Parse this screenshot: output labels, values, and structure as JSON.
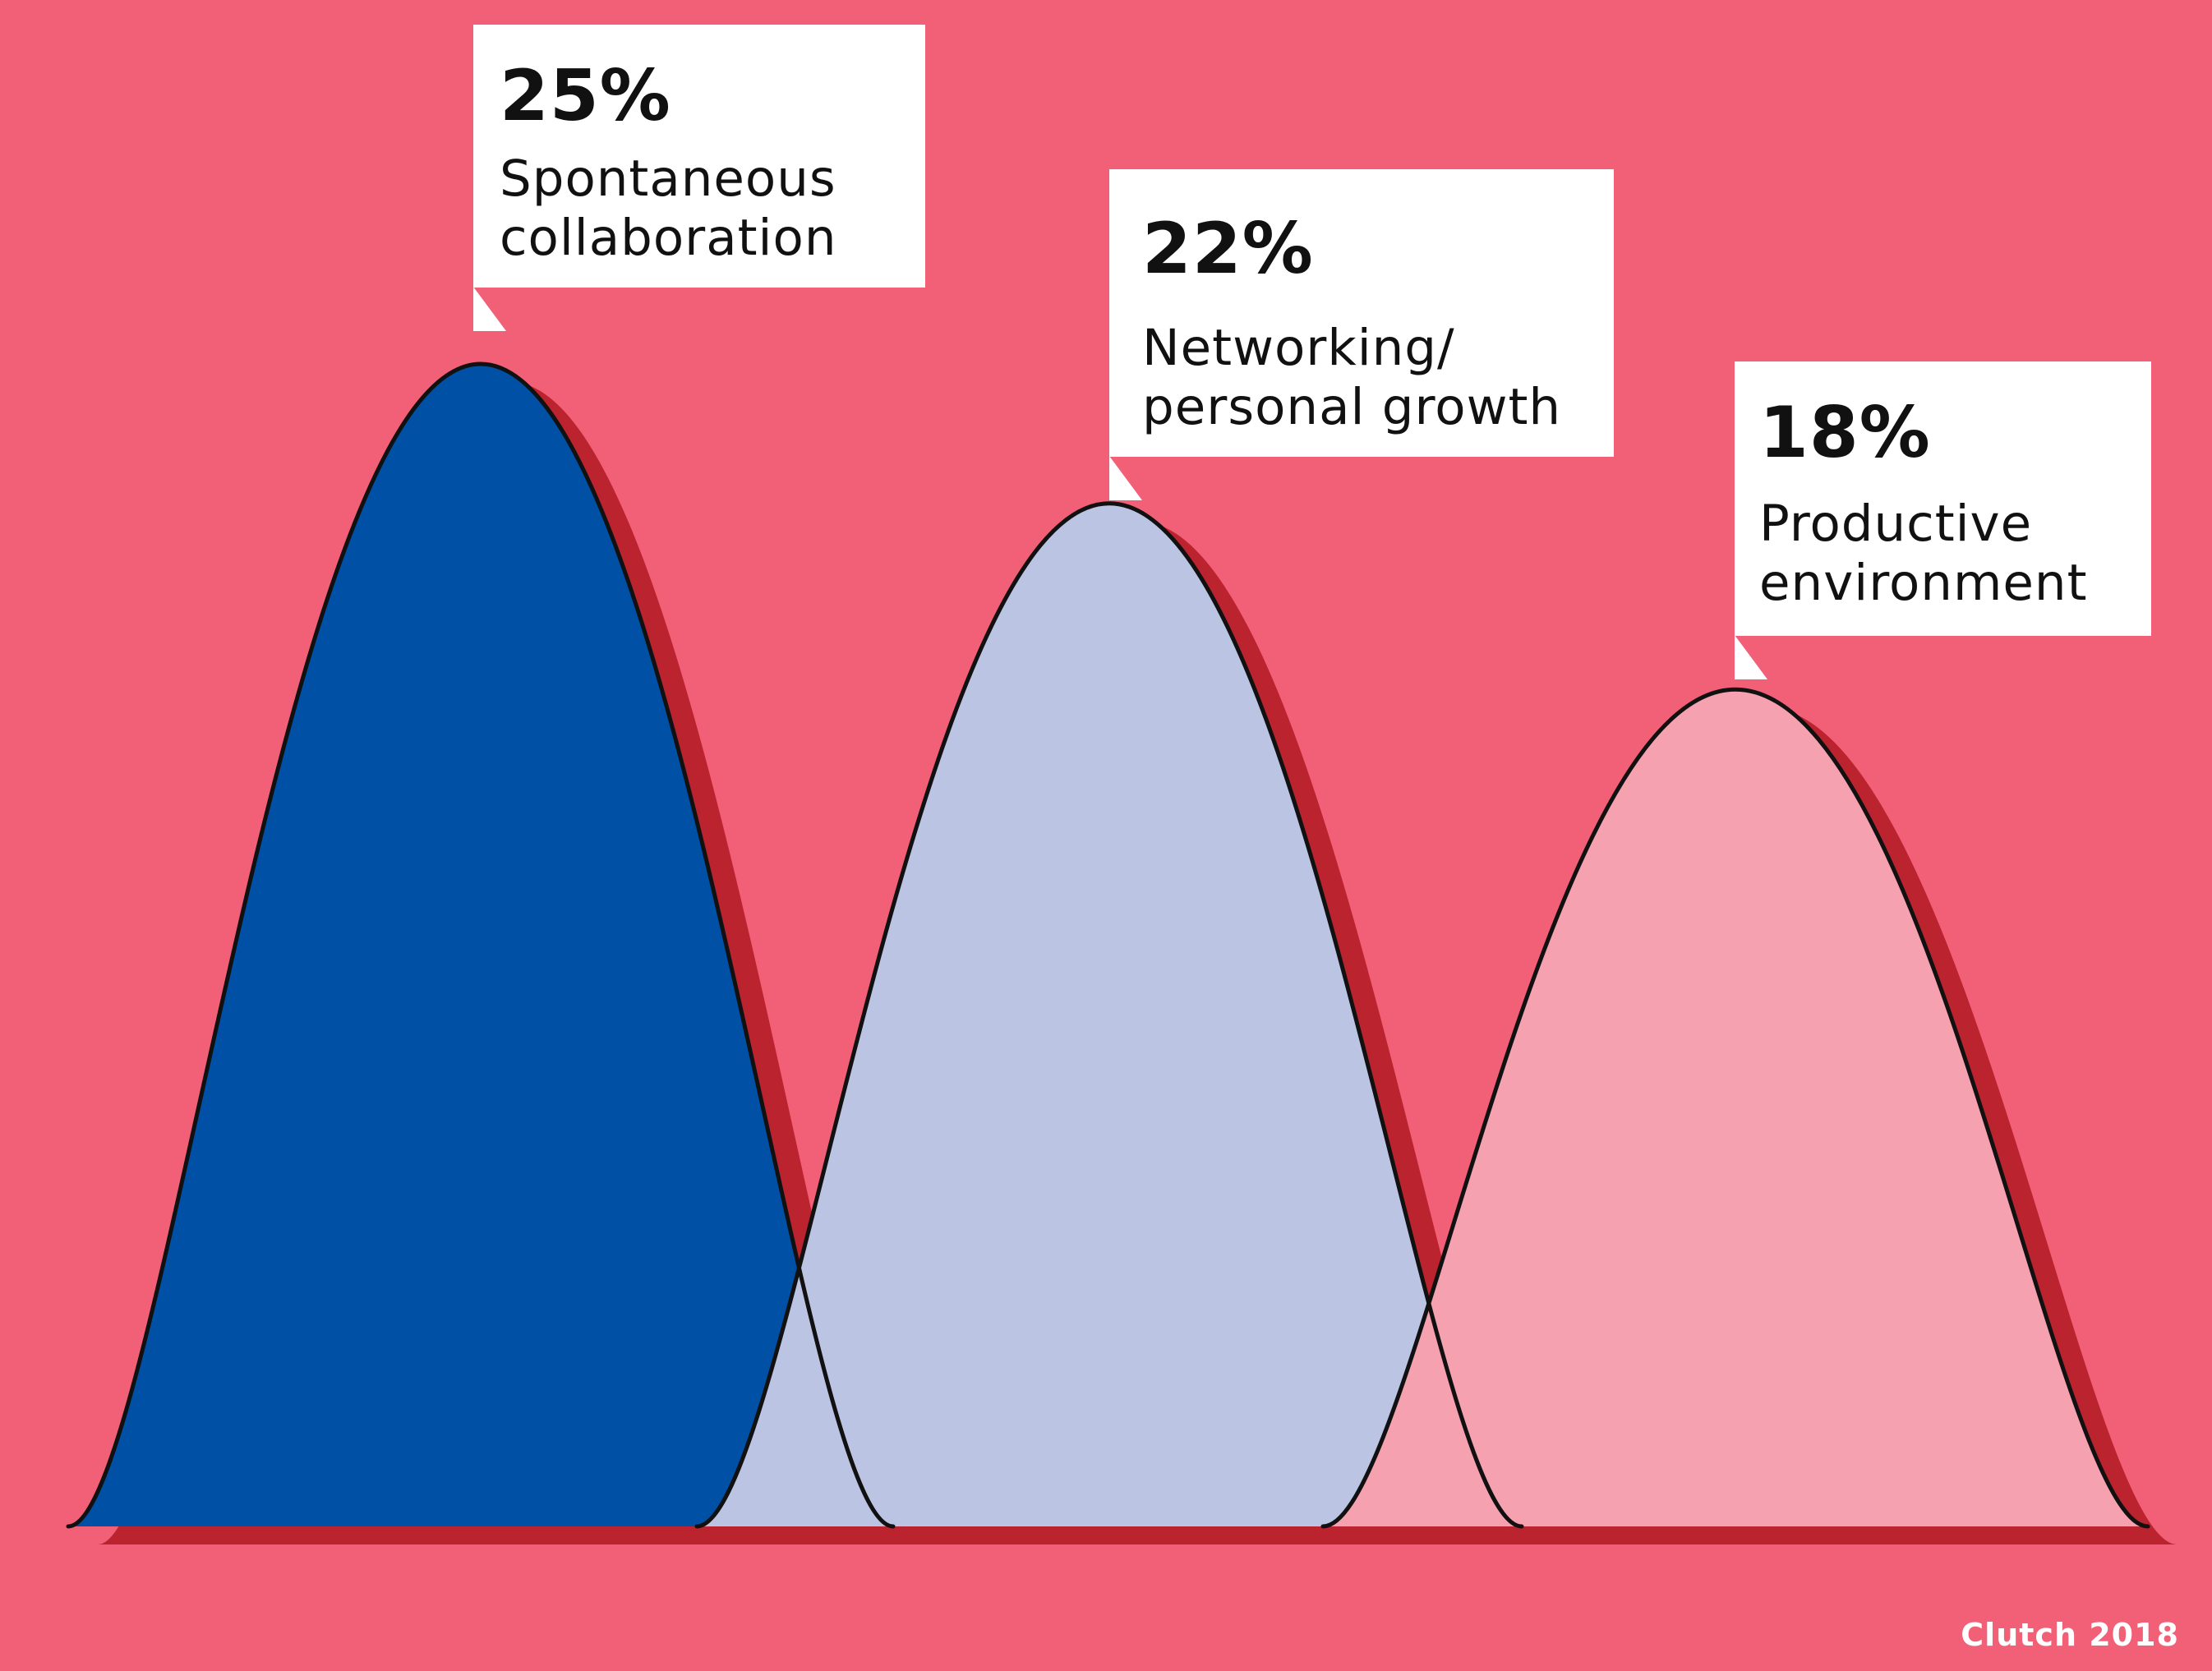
{
  "chart_data": {
    "type": "area",
    "title": "",
    "xlabel": "",
    "ylabel": "",
    "unit": "%",
    "ylim": [
      0,
      25
    ],
    "series": [
      {
        "name": "Spontaneous collaboration",
        "value": 25,
        "value_label": "25%",
        "label": "Spontaneous\ncollaboration",
        "color": "#0050a5"
      },
      {
        "name": "Networking/personal growth",
        "value": 22,
        "value_label": "22%",
        "label": "Networking/\npersonal growth",
        "color": "#bcc4e4"
      },
      {
        "name": "Productive environment",
        "value": 18,
        "value_label": "18%",
        "label": "Productive\nenvironment",
        "color": "#f5a1af"
      }
    ]
  },
  "colors": {
    "background": "#f26078",
    "shadow": "#bb232e",
    "outline": "#111111"
  },
  "source": "Clutch 2018"
}
